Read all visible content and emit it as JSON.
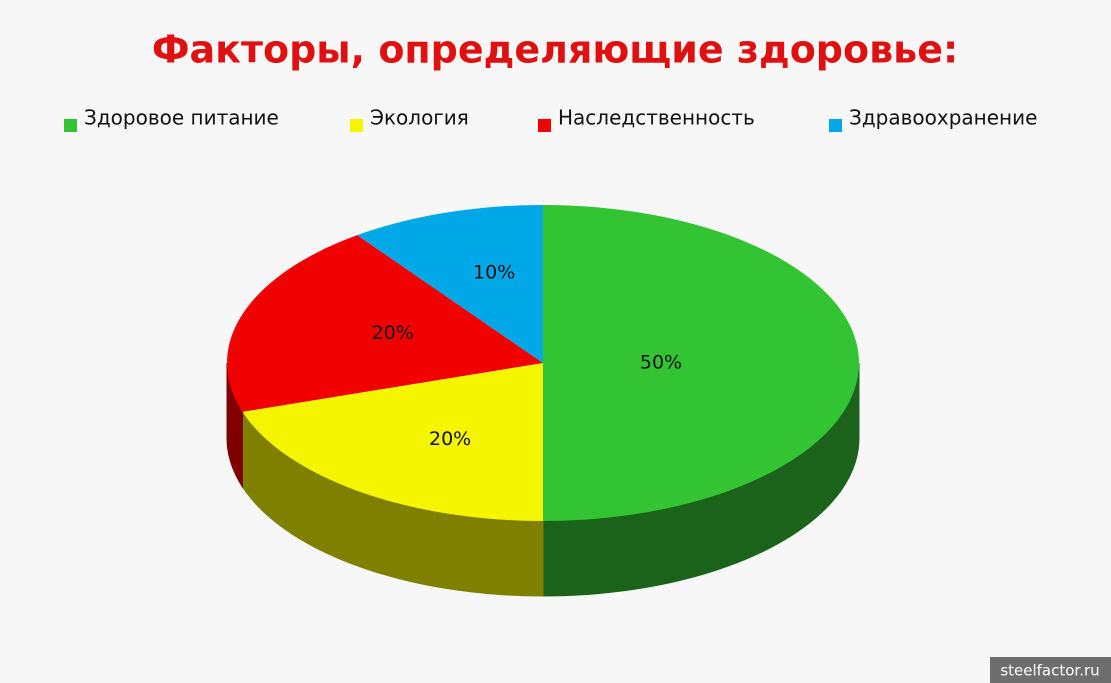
{
  "chart_data": {
    "type": "pie",
    "title": "Факторы, определяющие здоровье:",
    "categories": [
      "Здоровое питание",
      "Экология",
      "Наследственность",
      "Здравоохранение"
    ],
    "values": [
      50,
      20,
      20,
      10
    ],
    "value_labels": [
      "50%",
      "20%",
      "20%",
      "10%"
    ],
    "colors": [
      "#33c433",
      "#f5f500",
      "#f00000",
      "#00a8e8"
    ],
    "side_colors": [
      "#1b621b",
      "#808000",
      "#800000",
      "#005a7a"
    ],
    "legend": "top"
  },
  "watermark": "steelfactor.ru"
}
